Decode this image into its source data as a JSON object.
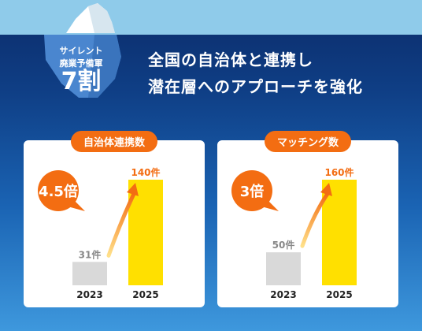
{
  "badge": {
    "line1": "サイレント",
    "line2": "廃業予備軍",
    "line3": "7割"
  },
  "headline": {
    "line1": "全国の自治体と連携し",
    "line2": "潜在層へのアプローチを強化"
  },
  "colors": {
    "accent": "#f36d12",
    "highlight": "#ffe000",
    "muted": "#d9d9d9"
  },
  "chart_data": [
    {
      "type": "bar",
      "title": "自治体連携数",
      "categories": [
        "2023",
        "2025"
      ],
      "values": [
        31,
        140
      ],
      "unit": "件",
      "multiplier": "4.5倍"
    },
    {
      "type": "bar",
      "title": "マッチング数",
      "categories": [
        "2023",
        "2025"
      ],
      "values": [
        50,
        160
      ],
      "unit": "件",
      "multiplier": "3倍"
    }
  ]
}
